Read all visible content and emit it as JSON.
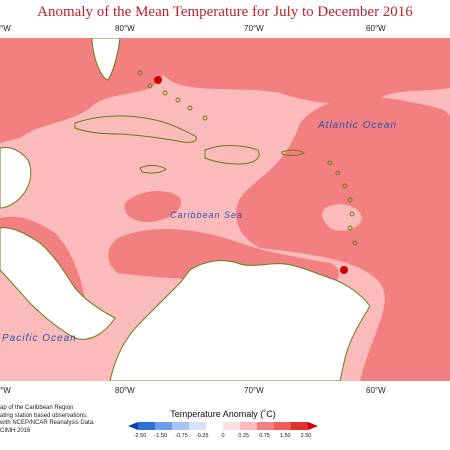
{
  "title": "Anomaly of the Mean Temperature for July to December 2016",
  "map": {
    "top_ticks": [
      "°W",
      "80°W",
      "70°W",
      "60°W"
    ],
    "bottom_ticks": [
      "°W",
      "80°W",
      "70°W",
      "60°W"
    ],
    "labels": {
      "atlantic": "Atlantic Ocean",
      "caribbean": "Caribbean Sea",
      "pacific": "Pacific Ocean"
    },
    "colors": {
      "anomaly_0_25_to_0_75": "#fbbbbb",
      "anomaly_0_75_to_1_25": "#f28080",
      "anomaly_1_25_to_1_50": "#f26a6a",
      "anomaly_max": "#cc0000",
      "land_no_data": "#ffffff",
      "coastline": "#6b7a1a"
    }
  },
  "notes": [
    "ap of the Caribbean Region",
    "ating station based observations,",
    "with NCEP/NCAR Reanalysis Data.",
    "CIMH 2016"
  ],
  "legend": {
    "title": "Temperature Anomaly (˚C)",
    "labels": [
      "-2.50",
      "-1.50",
      "-0.75",
      "-0.25",
      "0",
      "0.25",
      "0.75",
      "1.50",
      "2.50"
    ],
    "colors": [
      "#0044aa",
      "#2f6fd6",
      "#6f9be8",
      "#a9c4f2",
      "#d5e3fa",
      "#ffffff",
      "#fde0e0",
      "#fbbbbb",
      "#f28080",
      "#f05a5a",
      "#e03030",
      "#cc0000"
    ]
  }
}
